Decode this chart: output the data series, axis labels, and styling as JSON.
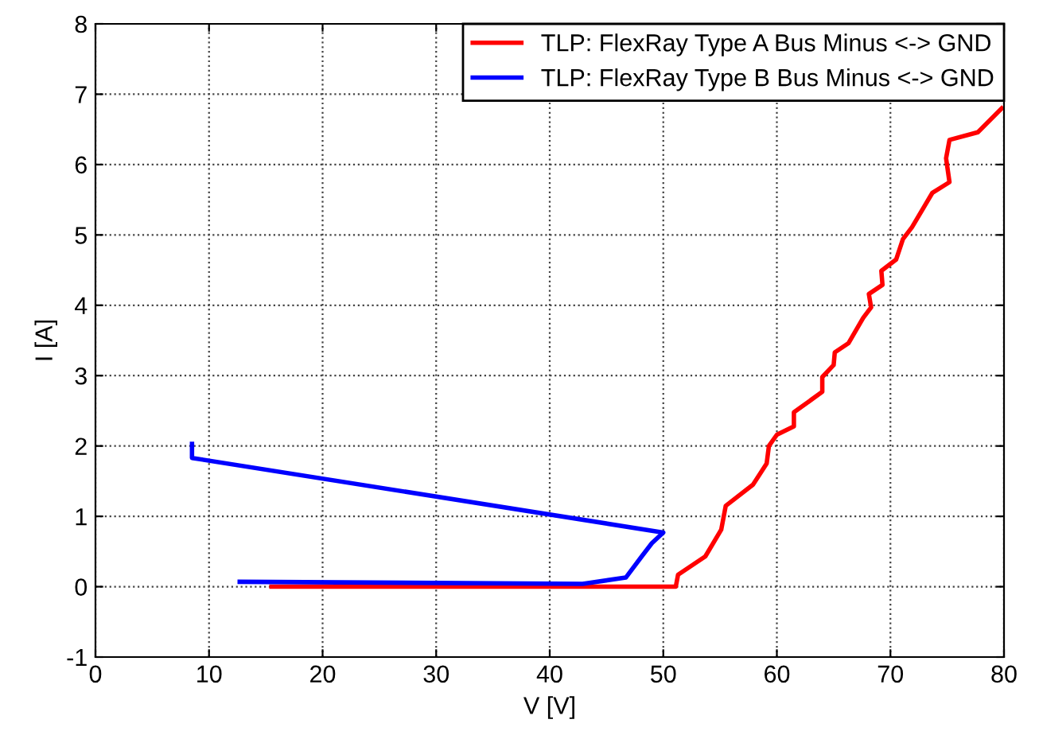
{
  "chart_data": {
    "type": "line",
    "xlabel": "V [V]",
    "ylabel": "I [A]",
    "xlim": [
      0,
      80
    ],
    "ylim": [
      -1,
      8
    ],
    "xticks": [
      0,
      10,
      20,
      30,
      40,
      50,
      60,
      70,
      80
    ],
    "yticks": [
      -1,
      0,
      1,
      2,
      3,
      4,
      5,
      6,
      7,
      8
    ],
    "grid": true,
    "legend": "top right",
    "line_style": "solid",
    "marker": "none",
    "series": [
      {
        "name": "TLP: FlexRay Type A Bus Minus <-> GND",
        "color": "#ff0000",
        "x": [
          15.5,
          51.1,
          51.3,
          53.7,
          55.1,
          55.5,
          57.9,
          59.1,
          59.3,
          60.0,
          61.5,
          61.5,
          62.8,
          64.0,
          64.0,
          65.0,
          65.1,
          66.3,
          67.6,
          68.3,
          68.1,
          69.3,
          69.2,
          70.5,
          71.1,
          71.9,
          73.7,
          75.2,
          74.9,
          75.2,
          77.7,
          79.8
        ],
        "values": [
          0,
          0,
          0.17,
          0.43,
          0.81,
          1.15,
          1.45,
          1.75,
          2.0,
          2.16,
          2.28,
          2.48,
          2.63,
          2.77,
          2.98,
          3.15,
          3.33,
          3.46,
          3.82,
          3.97,
          4.16,
          4.29,
          4.49,
          4.65,
          4.94,
          5.11,
          5.6,
          5.75,
          6.09,
          6.35,
          6.46,
          6.8
        ]
      },
      {
        "name": "TLP: FlexRay Type B Bus Minus <-> GND",
        "color": "#0000ff",
        "x": [
          8.5,
          8.5,
          50.0,
          49.0,
          48.1,
          46.7,
          42.9,
          12.7
        ],
        "values": [
          2.03,
          1.83,
          0.77,
          0.62,
          0.43,
          0.13,
          0.04,
          0.07
        ]
      }
    ]
  }
}
